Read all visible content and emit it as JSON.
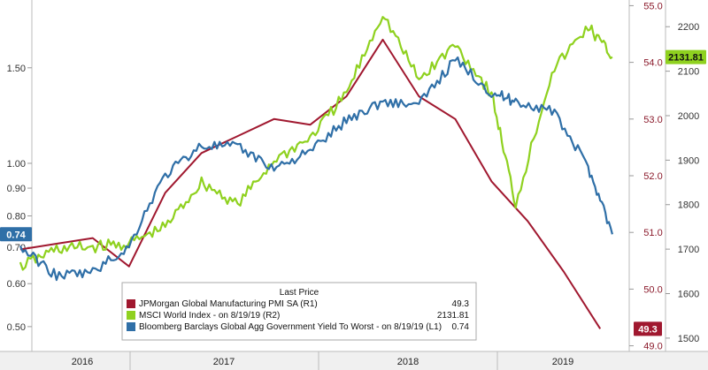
{
  "chart_data": {
    "type": "line",
    "title": "",
    "x_ticks": [
      "2016",
      "2017",
      "2018",
      "2019"
    ],
    "axes": {
      "left": {
        "ticks": [
          "0.50",
          "0.60",
          "0.70",
          "0.80",
          "0.90",
          "1.00",
          "1.50"
        ],
        "scale": "log",
        "range": [
          0.45,
          2.0
        ]
      },
      "right1": {
        "ticks": [
          "49.0",
          "50.0",
          "51.0",
          "52.0",
          "53.0",
          "54.0",
          "55.0"
        ],
        "range": [
          48.9,
          55.1
        ]
      },
      "right2": {
        "ticks": [
          "1500",
          "1600",
          "1700",
          "1800",
          "1900",
          "2000",
          "2100",
          "2200"
        ],
        "range": [
          1470,
          2260
        ]
      }
    },
    "legend": {
      "header": "Last Price",
      "placement": "bottom-center",
      "entries": [
        {
          "label": "JPMorgan Global Manufacturing PMI SA  (R1)",
          "value": "49.3",
          "color": "#a0182f"
        },
        {
          "label": "MSCI World Index -  on 8/19/19  (R2)",
          "value": "2131.81",
          "color": "#8fd11f"
        },
        {
          "label": "Bloomberg Barclays Global Agg Government Yield To Worst -  on 8/19/19  (L1)",
          "value": "0.74",
          "color": "#2f6fa7"
        }
      ]
    },
    "last_value_badges": [
      {
        "series": "MSCI World Index",
        "text": "2131.81",
        "color": "#8fd11f"
      },
      {
        "series": "Bloomberg Barclays Global Agg Government Yield To Worst",
        "text": "0.74",
        "color": "#2f6fa7"
      },
      {
        "series": "JPMorgan Global Manufacturing PMI SA",
        "text": "49.3",
        "color": "#a0182f"
      }
    ],
    "series": [
      {
        "name": "JPMorgan Global Manufacturing PMI SA",
        "axis": "right1",
        "color": "#a0182f",
        "x": [
          "2015-07",
          "2015-10",
          "2016-01",
          "2016-04",
          "2016-07",
          "2016-10",
          "2017-01",
          "2017-04",
          "2017-07",
          "2017-10",
          "2018-01",
          "2018-04",
          "2018-07",
          "2018-10",
          "2019-01",
          "2019-04",
          "2019-07"
        ],
        "values": [
          50.7,
          50.8,
          50.9,
          50.4,
          51.7,
          52.4,
          52.7,
          53.0,
          52.9,
          53.4,
          54.4,
          53.4,
          53.0,
          51.9,
          51.2,
          50.3,
          49.3
        ]
      },
      {
        "name": "MSCI World Index",
        "axis": "right2",
        "color": "#8fd11f",
        "x": [
          "2015-07",
          "2015-10",
          "2016-01",
          "2016-04",
          "2016-07",
          "2016-10",
          "2017-01",
          "2017-04",
          "2017-07",
          "2017-10",
          "2018-01",
          "2018-04",
          "2018-07",
          "2018-10",
          "2018-12",
          "2019-03",
          "2019-06",
          "2019-08"
        ],
        "values": [
          1660,
          1700,
          1705,
          1712,
          1750,
          1850,
          1800,
          1900,
          1950,
          2050,
          2230,
          2080,
          2160,
          2050,
          1800,
          2100,
          2200,
          2131.81
        ]
      },
      {
        "name": "Bloomberg Barclays Global Agg Government Yield To Worst",
        "axis": "left",
        "color": "#2f6fa7",
        "x": [
          "2015-07",
          "2015-10",
          "2016-01",
          "2016-04",
          "2016-07",
          "2016-10",
          "2017-01",
          "2017-04",
          "2017-07",
          "2017-10",
          "2018-01",
          "2018-04",
          "2018-07",
          "2018-10",
          "2018-12",
          "2019-03",
          "2019-06",
          "2019-08"
        ],
        "values": [
          0.7,
          0.62,
          0.63,
          0.7,
          0.95,
          1.08,
          1.07,
          0.98,
          1.05,
          1.2,
          1.3,
          1.28,
          1.55,
          1.35,
          1.3,
          1.25,
          0.98,
          0.74
        ]
      }
    ]
  }
}
